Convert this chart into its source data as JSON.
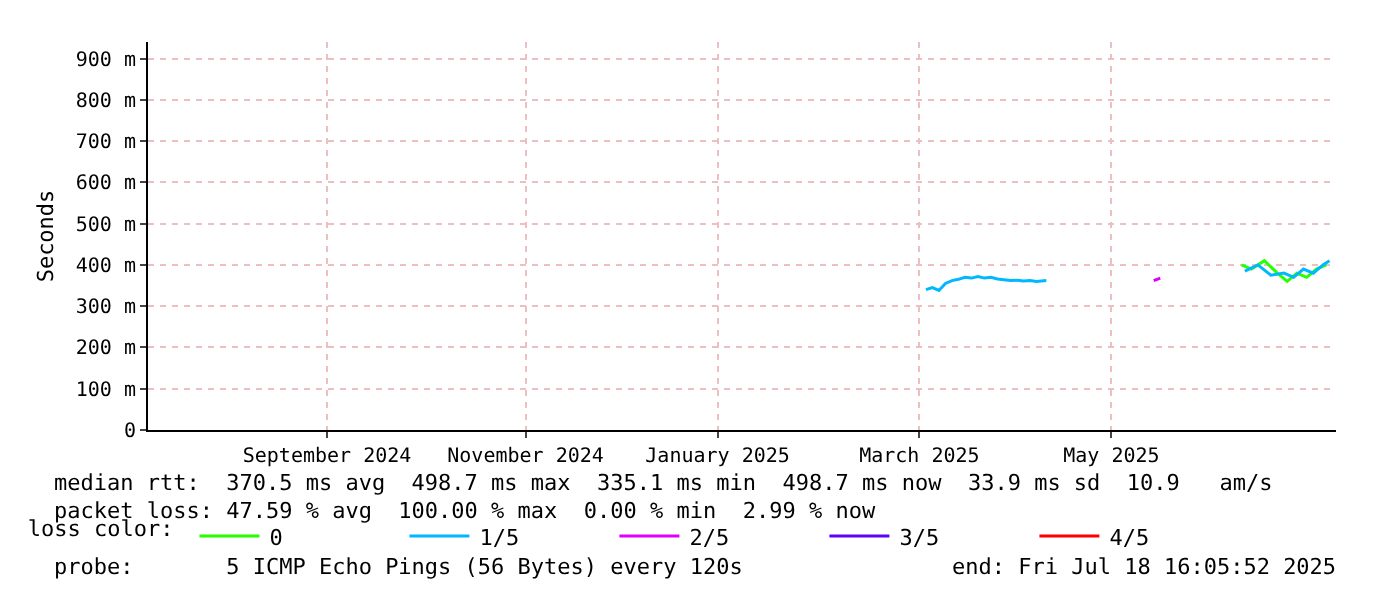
{
  "chart_data": {
    "type": "line",
    "ylabel": "Seconds",
    "legend_title": "loss color:",
    "legend": "bottom left",
    "grid": true,
    "marker": "none",
    "line_style": "solid",
    "xlim": [
      "2024-07-18",
      "2025-07-18"
    ],
    "xticks": [
      {
        "value": "2024-09-11",
        "label": "September 2024"
      },
      {
        "value": "2024-11-11",
        "label": "November 2024"
      },
      {
        "value": "2025-01-09",
        "label": "January 2025"
      },
      {
        "value": "2025-03-12",
        "label": "March 2025"
      },
      {
        "value": "2025-05-10",
        "label": "May 2025"
      }
    ],
    "ylim": [
      0,
      940
    ],
    "yticks": [
      0,
      {
        "value": 100,
        "label": "100 m"
      },
      {
        "value": 200,
        "label": "200 m"
      },
      {
        "value": 300,
        "label": "300 m"
      },
      {
        "value": 400,
        "label": "400 m"
      },
      {
        "value": 500,
        "label": "500 m"
      },
      {
        "value": 600,
        "label": "600 m"
      },
      {
        "value": 700,
        "label": "700 m"
      },
      {
        "value": 800,
        "label": "800 m"
      },
      {
        "value": 900,
        "label": "900 m"
      }
    ],
    "series": [
      {
        "name": "0",
        "color": "#26ff00",
        "x": [
          "2025-06-19",
          "2025-06-22",
          "2025-06-26",
          "2025-06-30",
          "2025-07-03",
          "2025-07-06",
          "2025-07-09",
          "2025-07-12",
          "2025-07-15"
        ],
        "values": [
          400,
          390,
          410,
          380,
          360,
          380,
          370,
          390,
          400
        ]
      },
      {
        "name": "1/5",
        "color": "#00b8ff",
        "x": [
          "2025-03-14",
          "2025-03-16",
          "2025-03-18",
          "2025-03-20",
          "2025-03-22",
          "2025-03-24",
          "2025-03-26",
          "2025-03-28",
          "2025-03-30",
          "2025-04-01",
          "2025-04-03",
          "2025-04-05",
          "2025-04-07",
          "2025-04-09",
          "2025-04-11",
          "2025-04-13",
          "2025-04-15",
          "2025-04-17",
          "2025-04-20",
          "2025-05-01",
          "2025-06-20",
          "2025-06-24",
          "2025-06-28",
          "2025-07-02",
          "2025-07-05",
          "2025-07-08",
          "2025-07-11",
          "2025-07-14",
          "2025-07-16"
        ],
        "values": [
          340,
          345,
          338,
          355,
          362,
          365,
          370,
          368,
          372,
          368,
          370,
          366,
          364,
          362,
          363,
          361,
          362,
          360,
          362,
          null,
          385,
          400,
          375,
          380,
          370,
          390,
          380,
          400,
          410
        ]
      },
      {
        "name": "2/5",
        "color": "#dd00ff",
        "x": [
          "2025-05-23",
          "2025-05-25"
        ],
        "values": [
          362,
          368
        ]
      },
      {
        "name": "3/5",
        "color": "#5e00ff"
      },
      {
        "name": "4/5",
        "color": "#ff0000"
      }
    ],
    "annotations": [
      "median rtt:  370.5 ms avg  498.7 ms max  335.1 ms min  498.7 ms now  33.9 ms sd  10.9   am/s",
      "packet loss: 47.59 % avg  100.00 % max  0.00 % min  2.99 % now",
      "probe:       5 ICMP Echo Pings (56 Bytes) every 120s",
      "end: Fri Jul 18 16:05:52 2025"
    ]
  }
}
